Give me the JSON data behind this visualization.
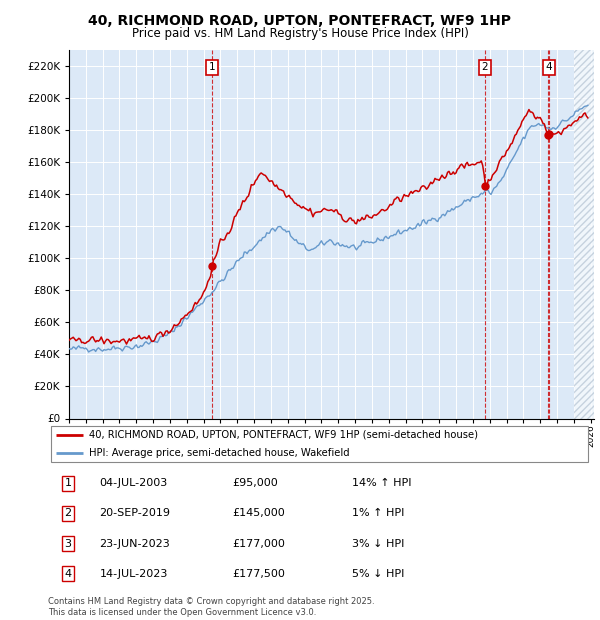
{
  "title": "40, RICHMOND ROAD, UPTON, PONTEFRACT, WF9 1HP",
  "subtitle": "Price paid vs. HM Land Registry's House Price Index (HPI)",
  "background_color": "#dce9f7",
  "red_color": "#cc0000",
  "blue_color": "#6699cc",
  "ylim": [
    0,
    230000
  ],
  "yticks": [
    0,
    20000,
    40000,
    60000,
    80000,
    100000,
    120000,
    140000,
    160000,
    180000,
    200000,
    220000
  ],
  "xmin": 1995,
  "xmax": 2026,
  "transaction_markers": [
    {
      "num": 1,
      "x": 2003.51,
      "price": 95000
    },
    {
      "num": 2,
      "x": 2019.72,
      "price": 145000
    },
    {
      "num": 3,
      "x": 2023.47,
      "price": 177000
    },
    {
      "num": 4,
      "x": 2023.54,
      "price": 177500
    }
  ],
  "legend_entries": [
    "40, RICHMOND ROAD, UPTON, PONTEFRACT, WF9 1HP (semi-detached house)",
    "HPI: Average price, semi-detached house, Wakefield"
  ],
  "table_rows": [
    [
      "1",
      "04-JUL-2003",
      "£95,000",
      "14% ↑ HPI"
    ],
    [
      "2",
      "20-SEP-2019",
      "£145,000",
      "1% ↑ HPI"
    ],
    [
      "3",
      "23-JUN-2023",
      "£177,000",
      "3% ↓ HPI"
    ],
    [
      "4",
      "14-JUL-2023",
      "£177,500",
      "5% ↓ HPI"
    ]
  ],
  "footnote": "Contains HM Land Registry data © Crown copyright and database right 2025.\nThis data is licensed under the Open Government Licence v3.0."
}
